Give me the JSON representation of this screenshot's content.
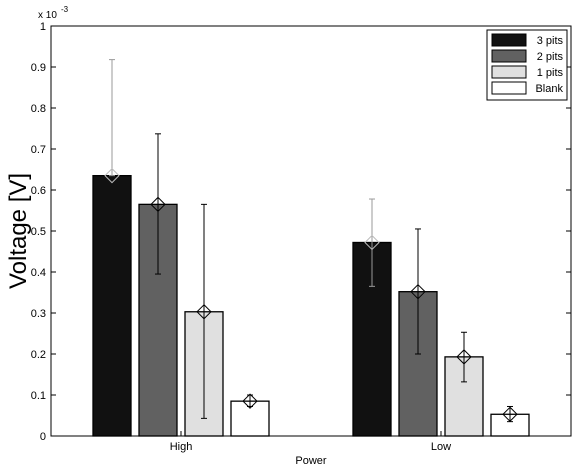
{
  "chart_data": {
    "type": "bar",
    "title": "",
    "xlabel": "Power",
    "ylabel": "Voltage [V]",
    "y_multiplier": "x 10",
    "y_exponent": "-3",
    "categories": [
      "High",
      "Low"
    ],
    "ylim": [
      0,
      1
    ],
    "yticks": [
      "0",
      "0.1",
      "0.2",
      "0.3",
      "0.4",
      "0.5",
      "0.6",
      "0.7",
      "0.8",
      "0.9",
      "1"
    ],
    "legend_position": "top-right",
    "grid": false,
    "series": [
      {
        "name": "3 pits",
        "color": "#111111",
        "values": [
          0.635,
          0.472
        ],
        "err_low": [
          0.635,
          0.365
        ],
        "err_high": [
          0.918,
          0.578
        ]
      },
      {
        "name": "2 pits",
        "color": "#616161",
        "values": [
          0.565,
          0.352
        ],
        "err_low": [
          0.395,
          0.2
        ],
        "err_high": [
          0.737,
          0.505
        ]
      },
      {
        "name": "1 pits",
        "color": "#e0e0e0",
        "values": [
          0.303,
          0.193
        ],
        "err_low": [
          0.043,
          0.132
        ],
        "err_high": [
          0.565,
          0.253
        ]
      },
      {
        "name": "Blank",
        "color": "#ffffff",
        "values": [
          0.085,
          0.053
        ],
        "err_low": [
          0.072,
          0.035
        ],
        "err_high": [
          0.1,
          0.072
        ]
      }
    ]
  }
}
